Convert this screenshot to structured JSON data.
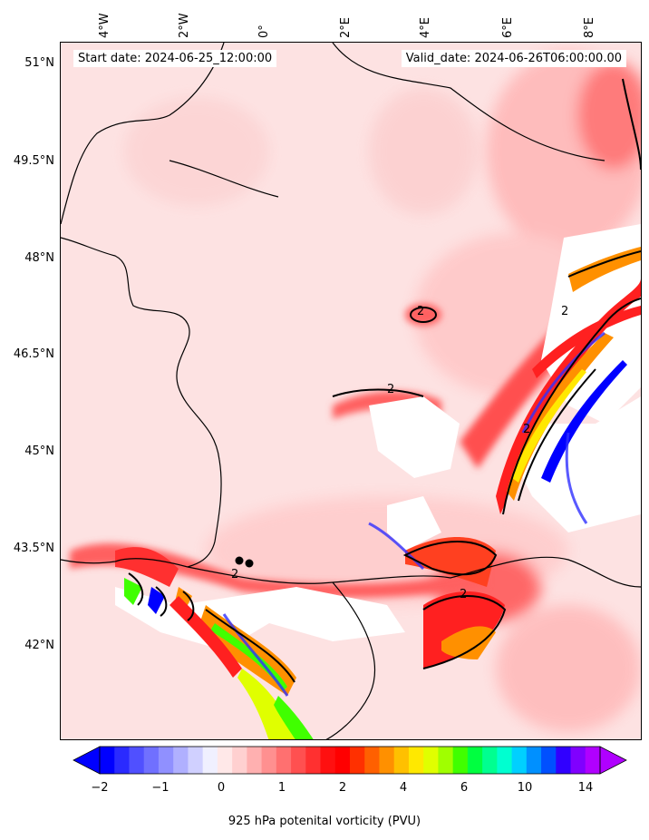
{
  "header": {
    "start_date": "Start date: 2024-06-25_12:00:00",
    "valid_date": "Valid_date: 2024-06-26T06:00:00.00"
  },
  "axes": {
    "lat_labels": [
      "51°N",
      "49.5°N",
      "48°N",
      "46.5°N",
      "45°N",
      "43.5°N",
      "42°N"
    ],
    "lon_labels": [
      "4°W",
      "2°W",
      "0°",
      "2°E",
      "4°E",
      "6°E",
      "8°E"
    ]
  },
  "colorbar": {
    "title": "925 hPa potenital vorticity (PVU)",
    "ticks": [
      "−2",
      "−1",
      "0",
      "1",
      "2",
      "4",
      "6",
      "10",
      "14"
    ],
    "colors": [
      "#0000ff",
      "#2a2aff",
      "#5050ff",
      "#7070ff",
      "#9090ff",
      "#b0b0ff",
      "#d0d0ff",
      "#f0f0ff",
      "#ffe8e8",
      "#ffd0d0",
      "#ffb0b0",
      "#ff9090",
      "#ff7070",
      "#ff5050",
      "#ff3030",
      "#ff1010",
      "#ff0000",
      "#ff3000",
      "#ff6000",
      "#ff9000",
      "#ffc000",
      "#ffe800",
      "#e0ff00",
      "#a0ff00",
      "#40ff00",
      "#00ff40",
      "#00ff90",
      "#00ffd0",
      "#00d0ff",
      "#0090ff",
      "#0050ff",
      "#3000ff",
      "#8000ff",
      "#b000ff"
    ],
    "under_color": "#0000ff",
    "over_color": "#b000ff"
  },
  "contour_label": "2"
}
